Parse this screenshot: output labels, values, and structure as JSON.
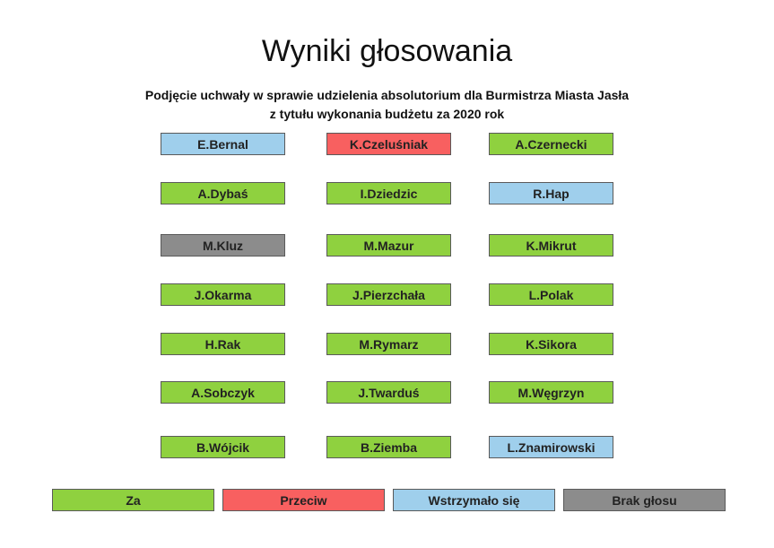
{
  "title": "Wyniki głosowania",
  "subtitle": [
    "Podjęcie uchwały w sprawie udzielenia absolutorium dla Burmistrza Miasta Jasła",
    "z tytułu wykonania budżetu za 2020 rok"
  ],
  "members": [
    {
      "name": "E.Bernal",
      "color": "#9fcfec"
    },
    {
      "name": "K.Czeluśniak",
      "color": "#f86060"
    },
    {
      "name": "A.Czernecki",
      "color": "#8fd13f"
    },
    {
      "name": "A.Dybaś",
      "color": "#8fd13f"
    },
    {
      "name": "I.Dziedzic",
      "color": "#8fd13f"
    },
    {
      "name": "R.Hap",
      "color": "#9fcfec"
    },
    {
      "name": "M.Kluz",
      "color": "#8c8c8c"
    },
    {
      "name": "M.Mazur",
      "color": "#8fd13f"
    },
    {
      "name": "K.Mikrut",
      "color": "#8fd13f"
    },
    {
      "name": "J.Okarma",
      "color": "#8fd13f"
    },
    {
      "name": "J.Pierzchała",
      "color": "#8fd13f"
    },
    {
      "name": "L.Polak",
      "color": "#8fd13f"
    },
    {
      "name": "H.Rak",
      "color": "#8fd13f"
    },
    {
      "name": "M.Rymarz",
      "color": "#8fd13f"
    },
    {
      "name": "K.Sikora",
      "color": "#8fd13f"
    },
    {
      "name": "A.Sobczyk",
      "color": "#8fd13f"
    },
    {
      "name": "J.Twarduś",
      "color": "#8fd13f"
    },
    {
      "name": "M.Węgrzyn",
      "color": "#8fd13f"
    },
    {
      "name": "B.Wójcik",
      "color": "#8fd13f"
    },
    {
      "name": "B.Ziemba",
      "color": "#8fd13f"
    },
    {
      "name": "L.Znamirowski",
      "color": "#9fcfec"
    }
  ],
  "legend": [
    {
      "label": "Za",
      "color": "#8fd13f"
    },
    {
      "label": "Przeciw",
      "color": "#f86060"
    },
    {
      "label": "Wstrzymało się",
      "color": "#9fcfec"
    },
    {
      "label": "Brak głosu",
      "color": "#8c8c8c"
    }
  ]
}
